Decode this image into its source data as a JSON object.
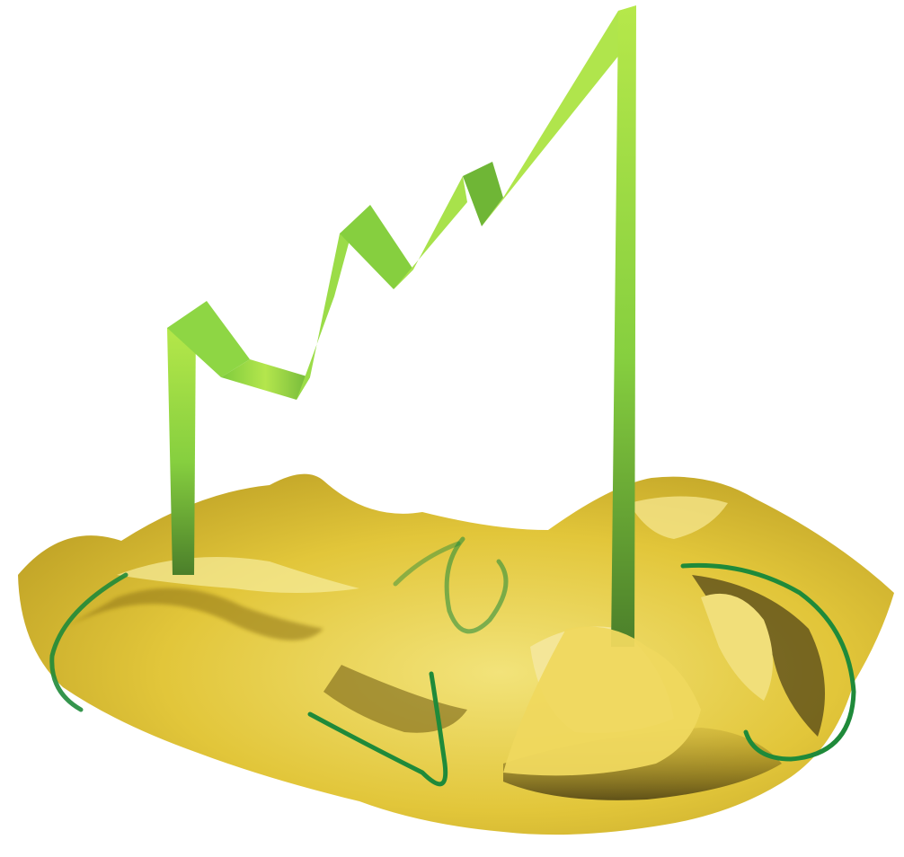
{
  "scene": {
    "subject": "paper-ribbon-zigzag-sculpture",
    "colors": {
      "background": "#ffffff",
      "ribbon_light": "#b6e84a",
      "ribbon_mid": "#86cf3f",
      "ribbon_dark": "#4b7f2a",
      "paper_light": "#f2e37a",
      "paper_mid": "#e2c63a",
      "paper_dark": "#8f7413",
      "paper_shadow": "#2e250b",
      "string": "#1f8a3a"
    }
  }
}
